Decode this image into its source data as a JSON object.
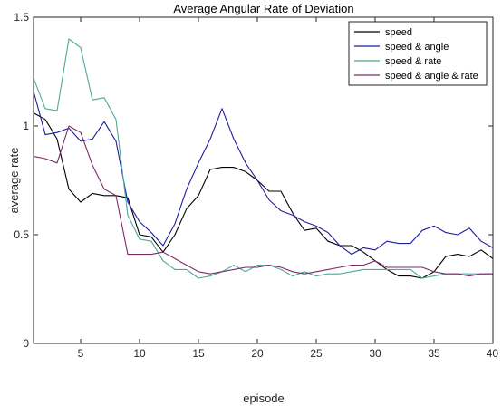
{
  "chart_data": {
    "type": "line",
    "title": "Average Angular Rate of Deviation",
    "xlabel": "episode",
    "ylabel": "average rate",
    "xlim": [
      1,
      40
    ],
    "ylim": [
      0,
      1.5
    ],
    "xticks": [
      5,
      10,
      15,
      20,
      25,
      30,
      35,
      40
    ],
    "yticks": [
      0,
      0.5,
      1,
      1.5
    ],
    "x_tick_labels": [
      "5",
      "10",
      "15",
      "20",
      "25",
      "30",
      "35",
      "40"
    ],
    "y_tick_labels": [
      "0",
      "0.5",
      "1",
      "1.5"
    ],
    "grid": false,
    "legend_position": "top-right",
    "x": [
      1,
      2,
      3,
      4,
      5,
      6,
      7,
      8,
      9,
      10,
      11,
      12,
      13,
      14,
      15,
      16,
      17,
      18,
      19,
      20,
      21,
      22,
      23,
      24,
      25,
      26,
      27,
      28,
      29,
      30,
      31,
      32,
      33,
      34,
      35,
      36,
      37,
      38,
      39,
      40
    ],
    "series": [
      {
        "name": "speed",
        "color": "#000000",
        "values": [
          1.06,
          1.03,
          0.94,
          0.71,
          0.65,
          0.69,
          0.68,
          0.68,
          0.67,
          0.5,
          0.49,
          0.42,
          0.5,
          0.62,
          0.68,
          0.8,
          0.81,
          0.81,
          0.79,
          0.75,
          0.7,
          0.7,
          0.6,
          0.52,
          0.53,
          0.47,
          0.45,
          0.45,
          0.42,
          0.38,
          0.34,
          0.31,
          0.31,
          0.3,
          0.33,
          0.4,
          0.41,
          0.4,
          0.43,
          0.39
        ]
      },
      {
        "name": "speed & angle",
        "color": "#1d1d9e",
        "values": [
          1.16,
          0.96,
          0.97,
          0.99,
          0.93,
          0.94,
          1.02,
          0.93,
          0.65,
          0.56,
          0.51,
          0.45,
          0.55,
          0.71,
          0.83,
          0.94,
          1.08,
          0.94,
          0.83,
          0.75,
          0.66,
          0.61,
          0.59,
          0.56,
          0.54,
          0.51,
          0.45,
          0.41,
          0.44,
          0.43,
          0.47,
          0.46,
          0.46,
          0.52,
          0.54,
          0.51,
          0.5,
          0.53,
          0.47,
          0.44
        ]
      },
      {
        "name": "speed & rate",
        "color": "#4ea89a",
        "values": [
          1.22,
          1.08,
          1.07,
          1.4,
          1.36,
          1.12,
          1.13,
          1.03,
          0.59,
          0.48,
          0.47,
          0.38,
          0.34,
          0.34,
          0.3,
          0.31,
          0.33,
          0.36,
          0.33,
          0.36,
          0.36,
          0.34,
          0.31,
          0.33,
          0.31,
          0.32,
          0.32,
          0.33,
          0.34,
          0.34,
          0.34,
          0.34,
          0.34,
          0.3,
          0.31,
          0.32,
          0.32,
          0.32,
          0.32,
          0.32
        ]
      },
      {
        "name": "speed & angle & rate",
        "color": "#7a2c68",
        "values": [
          0.86,
          0.85,
          0.83,
          1.0,
          0.97,
          0.82,
          0.71,
          0.68,
          0.41,
          0.41,
          0.41,
          0.42,
          0.39,
          0.36,
          0.33,
          0.32,
          0.33,
          0.34,
          0.35,
          0.35,
          0.36,
          0.35,
          0.33,
          0.32,
          0.33,
          0.34,
          0.35,
          0.36,
          0.36,
          0.38,
          0.35,
          0.35,
          0.35,
          0.35,
          0.33,
          0.32,
          0.32,
          0.31,
          0.32,
          0.32
        ]
      }
    ]
  }
}
